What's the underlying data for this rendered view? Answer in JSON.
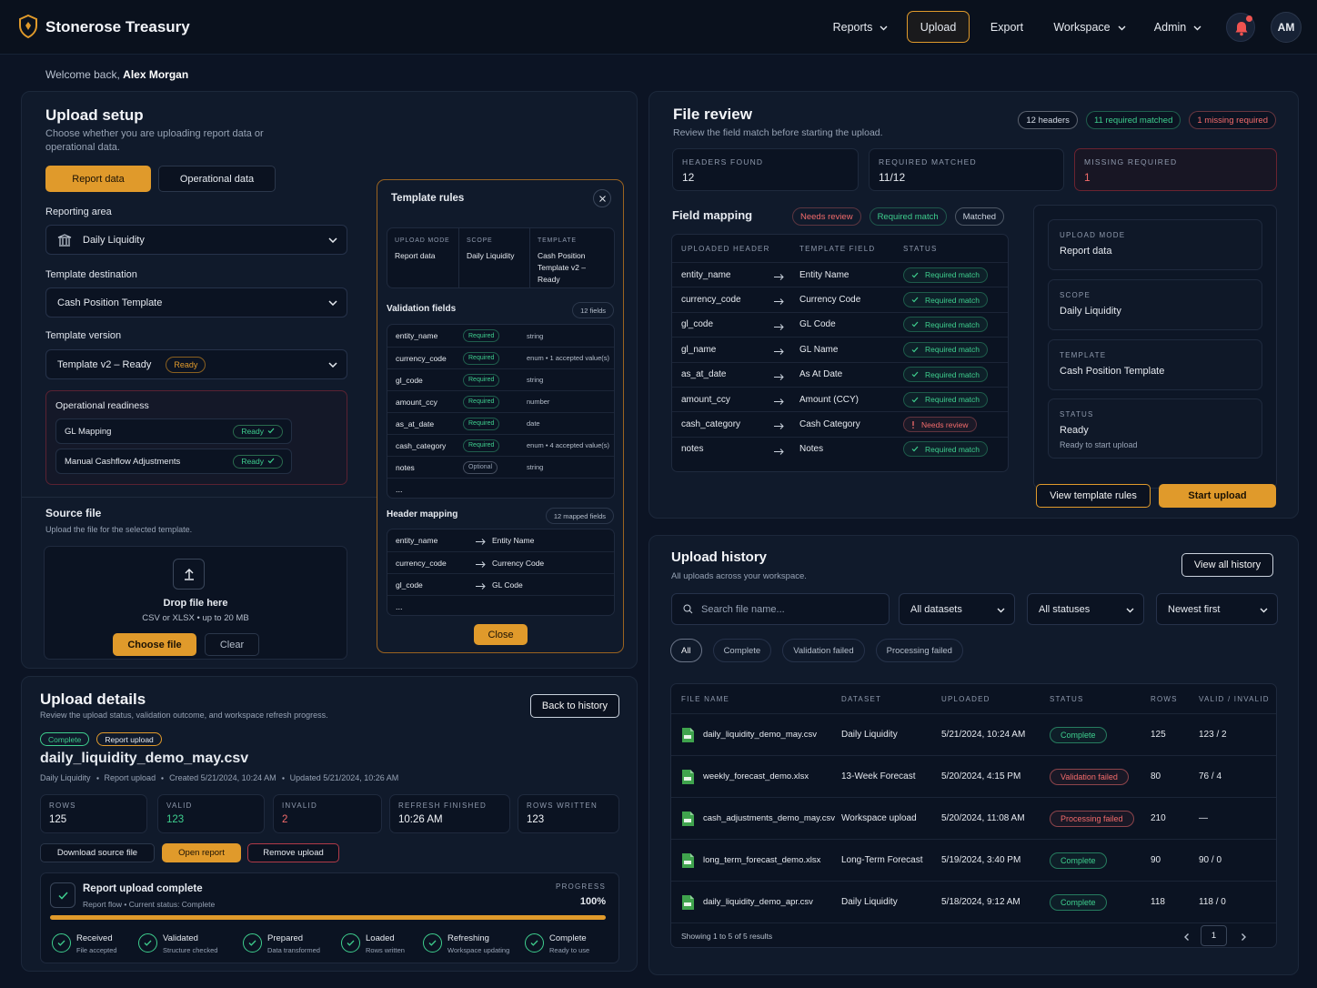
{
  "header": {
    "brand": "Stonerose Treasury",
    "nav": [
      "Reports",
      "Upload",
      "Export",
      "Workspace",
      "Admin"
    ],
    "avatar": "AM"
  },
  "welcome": {
    "prefix": "Welcome back,",
    "name": "Alex Morgan"
  },
  "upload_setup": {
    "title": "Upload setup",
    "subtitle": "Choose whether you are uploading report data or operational data.",
    "tabs": [
      "Report data",
      "Operational data"
    ],
    "reporting_area_label": "Reporting area",
    "reporting_area": "Daily Liquidity",
    "template_destination_label": "Template destination",
    "template_destination": "Cash Position Template",
    "template_version_label": "Template version",
    "template_version": "Template v2 – Ready",
    "template_version_badge": "Ready",
    "readiness": {
      "title": "Operational readiness",
      "items": [
        {
          "name": "GL Mapping",
          "status": "Ready"
        },
        {
          "name": "Manual Cashflow Adjustments",
          "status": "Ready"
        }
      ]
    },
    "source": {
      "title": "Source file",
      "subtitle": "Upload the file for the selected template.",
      "drop": "Drop file here",
      "hint": "CSV or XLSX • up to 20 MB",
      "choose": "Choose file",
      "clear": "Clear"
    }
  },
  "template_rules": {
    "title": "Template rules",
    "summary": [
      {
        "label": "UPLOAD MODE",
        "value": "Report data"
      },
      {
        "label": "SCOPE",
        "value": "Daily Liquidity"
      },
      {
        "label": "TEMPLATE",
        "value": "Cash Position Template v2 – Ready"
      }
    ],
    "validation_title": "Validation fields",
    "validation_count": "12 fields",
    "validation": [
      {
        "field": "entity_name",
        "rule": "Required",
        "type": "string",
        "color": "#3ecf8e"
      },
      {
        "field": "currency_code",
        "rule": "Required",
        "type": "enum • 1 accepted value(s)",
        "color": "#3ecf8e"
      },
      {
        "field": "gl_code",
        "rule": "Required",
        "type": "string",
        "color": "#3ecf8e"
      },
      {
        "field": "amount_ccy",
        "rule": "Required",
        "type": "number",
        "color": "#3ecf8e"
      },
      {
        "field": "as_at_date",
        "rule": "Required",
        "type": "date",
        "color": "#3ecf8e"
      },
      {
        "field": "cash_category",
        "rule": "Required",
        "type": "enum • 4 accepted value(s)",
        "color": "#3ecf8e"
      },
      {
        "field": "notes",
        "rule": "Optional",
        "type": "string",
        "color": "#9aa6b8"
      }
    ],
    "validation_more": "...",
    "mapping_title": "Header mapping",
    "mapping_count": "12 mapped fields",
    "mapping": [
      {
        "from": "entity_name",
        "to": "Entity Name"
      },
      {
        "from": "currency_code",
        "to": "Currency Code"
      },
      {
        "from": "gl_code",
        "to": "GL Code"
      }
    ],
    "mapping_more": "...",
    "close": "Close"
  },
  "file_review": {
    "title": "File review",
    "subtitle": "Review the field match before starting the upload.",
    "badges": [
      {
        "text": "12 headers",
        "color": "#d7dde7"
      },
      {
        "text": "11 required matched",
        "color": "#3ecf8e"
      },
      {
        "text": "1 missing required",
        "color": "#f36b6b"
      }
    ],
    "stats": [
      {
        "label": "HEADERS FOUND",
        "value": "12",
        "color": "#1e2a3d"
      },
      {
        "label": "REQUIRED MATCHED",
        "value": "11/12",
        "color": "#1e2a3d"
      },
      {
        "label": "MISSING REQUIRED",
        "value": "1",
        "color": "#6b2330"
      }
    ],
    "mapping_title": "Field mapping",
    "legend": [
      {
        "text": "Needs review",
        "color": "#f36b6b"
      },
      {
        "text": "Required match",
        "color": "#3ecf8e"
      },
      {
        "text": "Matched",
        "color": "#c9d1dc"
      }
    ],
    "columns": [
      "UPLOADED HEADER",
      "TEMPLATE FIELD",
      "STATUS"
    ],
    "rows": [
      {
        "header": "entity_name",
        "field": "Entity Name",
        "status": "Required match",
        "color": "#3ecf8e"
      },
      {
        "header": "currency_code",
        "field": "Currency Code",
        "status": "Required match",
        "color": "#3ecf8e"
      },
      {
        "header": "gl_code",
        "field": "GL Code",
        "status": "Required match",
        "color": "#3ecf8e"
      },
      {
        "header": "gl_name",
        "field": "GL Name",
        "status": "Required match",
        "color": "#3ecf8e"
      },
      {
        "header": "as_at_date",
        "field": "As At Date",
        "status": "Required match",
        "color": "#3ecf8e"
      },
      {
        "header": "amount_ccy",
        "field": "Amount (CCY)",
        "status": "Required match",
        "color": "#3ecf8e"
      },
      {
        "header": "cash_category",
        "field": "Cash Category",
        "status": "Needs review",
        "color": "#f36b6b"
      },
      {
        "header": "notes",
        "field": "Notes",
        "status": "Required match",
        "color": "#3ecf8e"
      }
    ],
    "side": [
      {
        "label": "UPLOAD MODE",
        "value": "Report data"
      },
      {
        "label": "SCOPE",
        "value": "Daily Liquidity"
      },
      {
        "label": "TEMPLATE",
        "value": "Cash Position Template"
      },
      {
        "label": "STATUS",
        "value": "Ready",
        "note": "Ready to start upload"
      }
    ],
    "buttons": [
      "View template rules",
      "Start upload"
    ]
  },
  "upload_history": {
    "title": "Upload history",
    "subtitle": "All uploads across your workspace.",
    "view_all": "View all history",
    "search": "Search file name...",
    "selects": [
      "All datasets",
      "All statuses",
      "Newest first"
    ],
    "filters": [
      "All",
      "Complete",
      "Validation failed",
      "Processing failed"
    ],
    "columns": [
      "FILE NAME",
      "DATASET",
      "UPLOADED",
      "STATUS",
      "ROWS",
      "VALID / INVALID"
    ],
    "rows": [
      {
        "file": "daily_liquidity_demo_may.csv",
        "dataset": "Daily Liquidity",
        "uploaded": "5/21/2024, 10:24 AM",
        "status": "Complete",
        "color": "#3ecf8e",
        "rows": "125",
        "valid": "123 / 2"
      },
      {
        "file": "weekly_forecast_demo.xlsx",
        "dataset": "13-Week Forecast",
        "uploaded": "5/20/2024, 4:15 PM",
        "status": "Validation failed",
        "color": "#f36b6b",
        "rows": "80",
        "valid": "76 / 4"
      },
      {
        "file": "cash_adjustments_demo_may.csv",
        "dataset": "Workspace upload",
        "uploaded": "5/20/2024, 11:08 AM",
        "status": "Processing failed",
        "color": "#f36b6b",
        "rows": "210",
        "valid": "—"
      },
      {
        "file": "long_term_forecast_demo.xlsx",
        "dataset": "Long-Term Forecast",
        "uploaded": "5/19/2024, 3:40 PM",
        "status": "Complete",
        "color": "#3ecf8e",
        "rows": "90",
        "valid": "90 / 0"
      },
      {
        "file": "daily_liquidity_demo_apr.csv",
        "dataset": "Daily Liquidity",
        "uploaded": "5/18/2024, 9:12 AM",
        "status": "Complete",
        "color": "#3ecf8e",
        "rows": "118",
        "valid": "118 / 0"
      }
    ],
    "footer": "Showing 1 to 5 of 5 results",
    "page": "1"
  },
  "upload_details": {
    "title": "Upload details",
    "subtitle": "Review the upload status, validation outcome, and workspace refresh progress.",
    "back": "Back to history",
    "badges": [
      {
        "text": "Complete",
        "color": "#3ecf8e"
      },
      {
        "text": "Report upload",
        "color": "#e09a2b"
      }
    ],
    "filename": "daily_liquidity_demo_may.csv",
    "meta": [
      "Daily Liquidity",
      "Report upload",
      "Created 5/21/2024, 10:24 AM",
      "Updated 5/21/2024, 10:26 AM"
    ],
    "stats": [
      {
        "label": "ROWS",
        "value": "125",
        "color": "#f1f4f8"
      },
      {
        "label": "VALID",
        "value": "123",
        "color": "#3ecf8e"
      },
      {
        "label": "INVALID",
        "value": "2",
        "color": "#f36b6b"
      },
      {
        "label": "REFRESH FINISHED",
        "value": "10:26 AM",
        "color": "#f1f4f8"
      },
      {
        "label": "ROWS WRITTEN",
        "value": "123",
        "color": "#f1f4f8"
      }
    ],
    "actions": [
      "Download source file",
      "Open report",
      "Remove upload"
    ],
    "progress": {
      "title": "Report upload complete",
      "subtitle": "Report flow • Current status: Complete",
      "label": "PROGRESS",
      "value": "100%",
      "steps": [
        {
          "name": "Received",
          "note": "File accepted"
        },
        {
          "name": "Validated",
          "note": "Structure checked"
        },
        {
          "name": "Prepared",
          "note": "Data transformed"
        },
        {
          "name": "Loaded",
          "note": "Rows written"
        },
        {
          "name": "Refreshing",
          "note": "Workspace updating"
        },
        {
          "name": "Complete",
          "note": "Ready to use"
        }
      ]
    }
  }
}
